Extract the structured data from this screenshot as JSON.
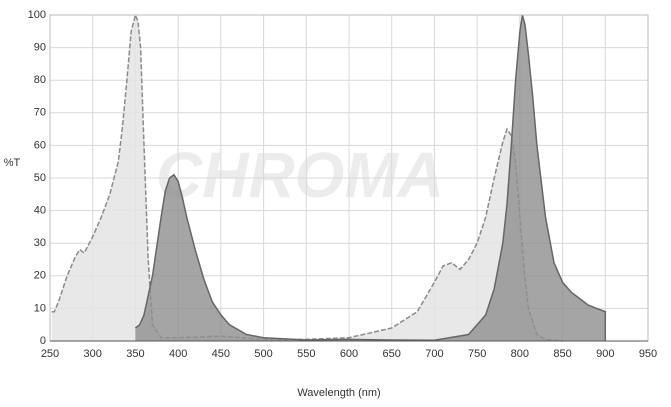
{
  "chart_data": {
    "type": "area",
    "watermark": "CHROMA",
    "x_label": "Wavelength (nm)",
    "y_label": "%T",
    "xlim": [
      250,
      950
    ],
    "ylim": [
      0,
      100
    ],
    "xticks": [
      250,
      300,
      350,
      400,
      450,
      500,
      550,
      600,
      650,
      700,
      750,
      800,
      850,
      900,
      950
    ],
    "yticks": [
      0,
      10,
      20,
      30,
      40,
      50,
      60,
      70,
      80,
      90,
      100
    ],
    "grid": true,
    "series": [
      {
        "color": "#e4e4e4",
        "line_color": "#8a8a8a",
        "dashed": true,
        "x": [
          252,
          255,
          260,
          270,
          280,
          285,
          290,
          300,
          310,
          320,
          330,
          335,
          340,
          345,
          350,
          353,
          356,
          360,
          365,
          370,
          380,
          400,
          450,
          500,
          550,
          600,
          650,
          680,
          700,
          710,
          720,
          730,
          740,
          750,
          760,
          770,
          780,
          785,
          790,
          795,
          800,
          805,
          810,
          820,
          830,
          850
        ],
        "values": [
          9,
          9,
          12,
          20,
          26,
          28,
          27,
          32,
          38,
          45,
          55,
          66,
          80,
          95,
          100,
          98,
          90,
          60,
          25,
          5,
          1,
          1,
          1.5,
          0.5,
          0.5,
          1,
          4,
          9,
          18,
          23,
          24,
          22,
          25,
          30,
          38,
          50,
          61,
          65,
          63,
          55,
          38,
          22,
          10,
          2,
          0.5,
          0
        ]
      },
      {
        "color": "#8f8f8f",
        "line_color": "#666666",
        "dashed": false,
        "x": [
          350,
          355,
          360,
          370,
          380,
          385,
          390,
          395,
          400,
          405,
          410,
          420,
          430,
          440,
          450,
          460,
          480,
          500,
          550,
          600,
          650,
          700,
          740,
          760,
          770,
          780,
          785,
          790,
          795,
          800,
          803,
          806,
          810,
          815,
          820,
          830,
          840,
          850,
          860,
          870,
          880,
          890,
          900,
          900
        ],
        "values": [
          4,
          5,
          8,
          20,
          38,
          46,
          50,
          51,
          49,
          44,
          38,
          28,
          19,
          12,
          8,
          5,
          2,
          1,
          0.3,
          0.5,
          0.3,
          0.2,
          2,
          8,
          16,
          30,
          42,
          60,
          80,
          95,
          100,
          97,
          88,
          75,
          60,
          38,
          24,
          18,
          15,
          13,
          11,
          10,
          9,
          0
        ]
      }
    ]
  }
}
